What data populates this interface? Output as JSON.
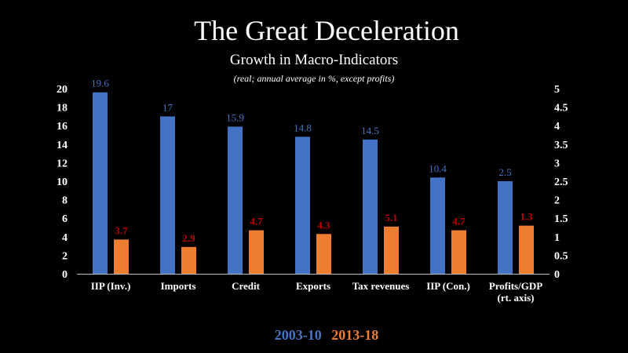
{
  "title": "The Great Deceleration",
  "subtitle": "Growth in Macro-Indicators",
  "note": "(real; annual average in %, except profits)",
  "colors": {
    "series1": "#4472C4",
    "series2": "#ED7D31",
    "label1": "#4472C4",
    "label2": "#C00000"
  },
  "chart_data": {
    "type": "bar",
    "categories": [
      [
        "IIP (Inv.)"
      ],
      [
        "Imports"
      ],
      [
        "Credit"
      ],
      [
        "Exports"
      ],
      [
        "Tax revenues"
      ],
      [
        "IIP (Con.)"
      ],
      [
        "Profits/GDP",
        "(rt. axis)"
      ]
    ],
    "series": [
      {
        "name": "2003-10",
        "values": [
          19.6,
          17,
          15.9,
          14.8,
          14.5,
          10.4,
          2.5
        ],
        "labels": [
          "19.6",
          "17",
          "15.9",
          "14.8",
          "14.5",
          "10.4",
          "2.5"
        ]
      },
      {
        "name": "2013-18",
        "values": [
          3.7,
          2.9,
          4.7,
          4.3,
          5.1,
          4.7,
          1.3
        ],
        "labels": [
          "3.7",
          "2.9",
          "4.7",
          "4.3",
          "5.1",
          "4.7",
          "1.3"
        ]
      }
    ],
    "right_axis_categories": [
      6
    ],
    "ylim": [
      0,
      20
    ],
    "yticks": [
      "0",
      "2",
      "4",
      "6",
      "8",
      "10",
      "12",
      "14",
      "16",
      "18",
      "20"
    ],
    "y2lim": [
      0,
      5
    ],
    "y2ticks": [
      "0",
      "0.5",
      "1",
      "1.5",
      "2",
      "2.5",
      "3",
      "3.5",
      "4",
      "4.5",
      "5"
    ],
    "grid": false,
    "legend": "bottom"
  }
}
